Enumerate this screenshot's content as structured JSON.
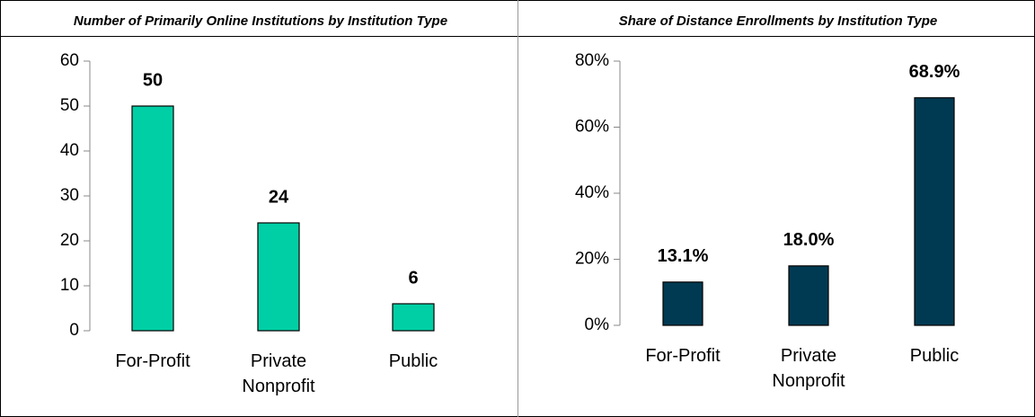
{
  "chart_data": [
    {
      "type": "bar",
      "title": "Number of Primarily Online Institutions by Institution Type",
      "categories": [
        "For-Profit",
        "Private Nonprofit",
        "Public"
      ],
      "values": [
        50,
        24,
        6
      ],
      "color": "#00cfa5",
      "ylim": [
        0,
        60
      ],
      "yticks": [
        0,
        10,
        20,
        30,
        40,
        50,
        60
      ]
    },
    {
      "type": "bar",
      "title": "Share of Distance Enrollments by Institution Type",
      "categories": [
        "For-Profit",
        "Private Nonprofit",
        "Public"
      ],
      "values": [
        13.1,
        18.0,
        68.9
      ],
      "value_labels": [
        "13.1%",
        "18.0%",
        "68.9%"
      ],
      "color": "#003a52",
      "ylim": [
        0,
        80
      ],
      "yticks": [
        {
          "value": 0,
          "label": "0%"
        },
        {
          "value": 20,
          "label": "20%"
        },
        {
          "value": 40,
          "label": "40%"
        },
        {
          "value": 60,
          "label": "60%"
        },
        {
          "value": 80,
          "label": "80%"
        }
      ]
    }
  ]
}
